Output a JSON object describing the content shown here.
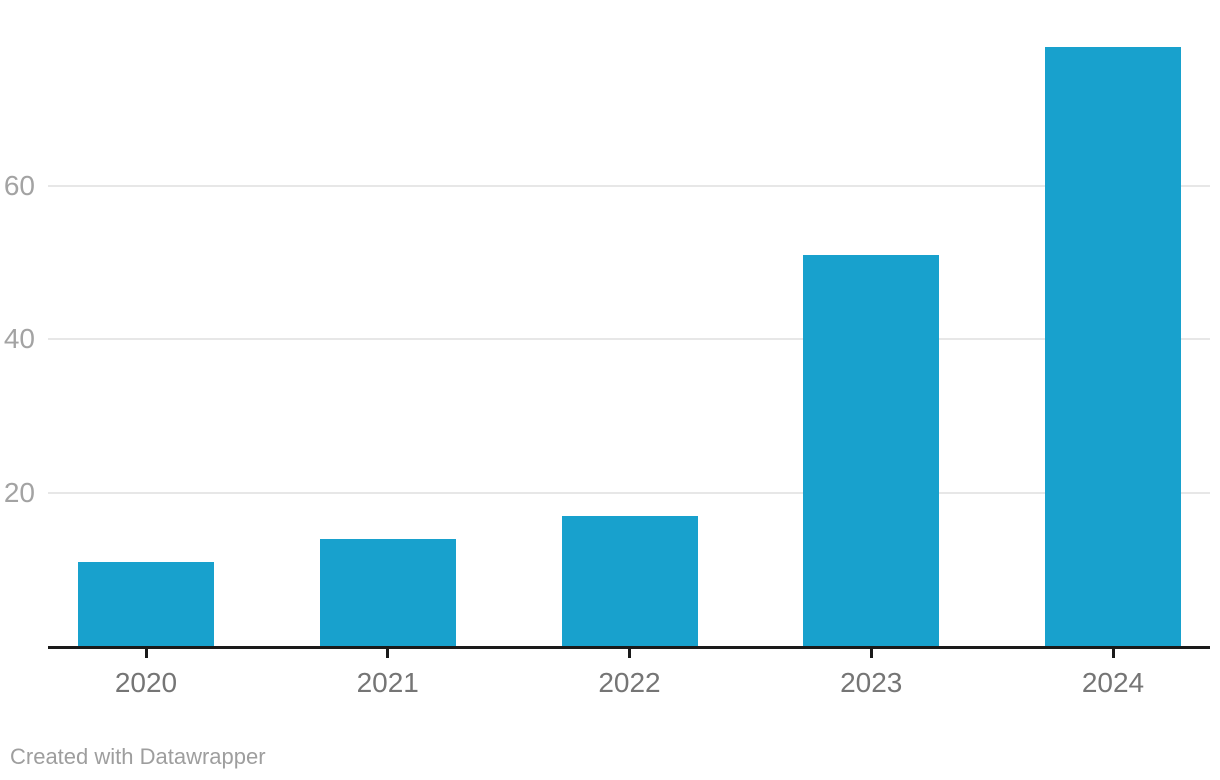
{
  "chart_data": {
    "type": "bar",
    "categories": [
      "2020",
      "2021",
      "2022",
      "2023",
      "2024"
    ],
    "values": [
      11,
      14,
      17,
      51,
      78
    ],
    "title": "",
    "xlabel": "",
    "ylabel": "",
    "ylim": [
      0,
      78
    ],
    "yticks": [
      20,
      40,
      60
    ],
    "grid": true,
    "legend_position": "none",
    "colors": {
      "bar": "#18a1cd",
      "axis": "#1a1a1a",
      "gridline": "#e7e7e7",
      "x_tick_label": "#757575",
      "y_tick_label": "#a3a3a3",
      "credit_text": "#9e9e9e",
      "background": "#ffffff"
    }
  },
  "footer": {
    "credit": "Created with Datawrapper"
  }
}
